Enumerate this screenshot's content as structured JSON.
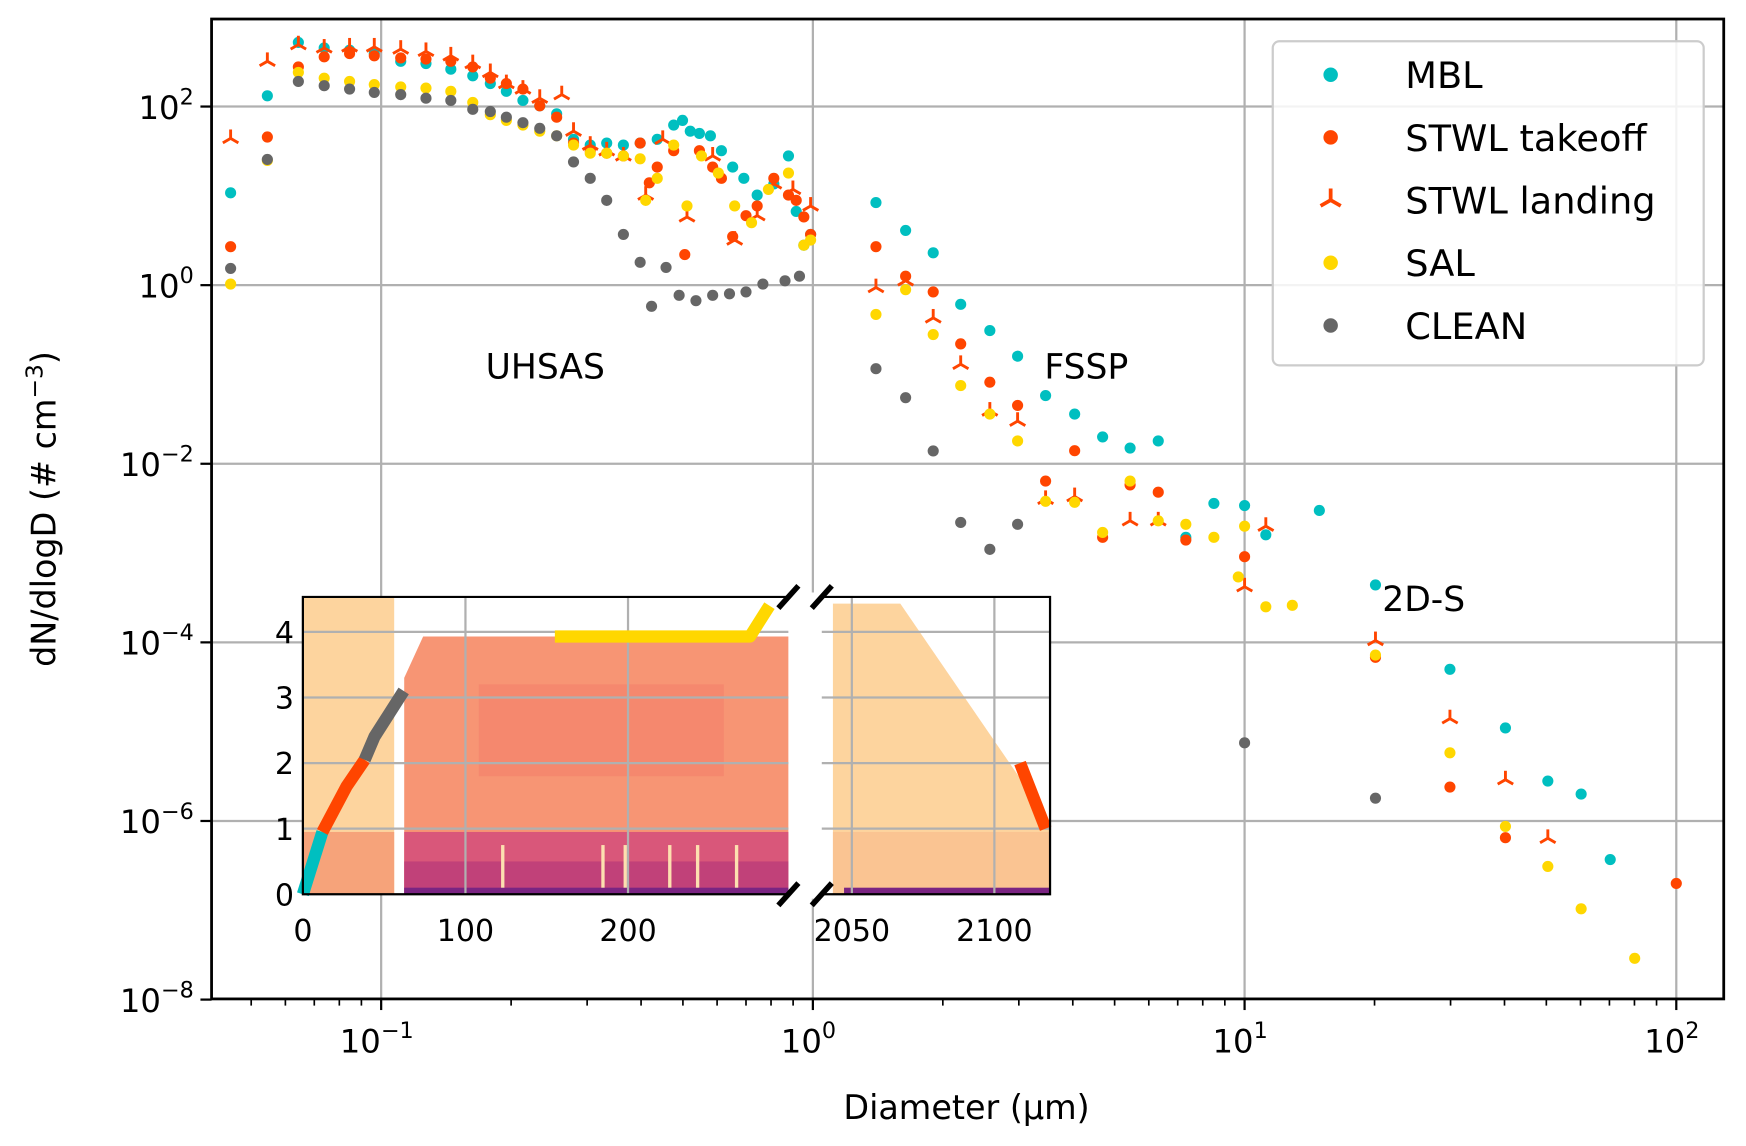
{
  "chart_data": {
    "type": "scatter",
    "xlabel": "Diameter (μm)",
    "ylabel": "dN/dlogD (# cm",
    "ylabel_sup": "−3",
    "ylabel_close": ")",
    "xscale": "log",
    "yscale": "log",
    "xlim": [
      0.0404,
      128
    ],
    "ylim": [
      1e-08,
      930
    ],
    "grid": true,
    "legend_position": "top-right",
    "x_ticks": [
      {
        "base": "10",
        "exp": "−1",
        "value": 0.1
      },
      {
        "base": "10",
        "exp": "0",
        "value": 1
      },
      {
        "base": "10",
        "exp": "1",
        "value": 10
      },
      {
        "base": "10",
        "exp": "2",
        "value": 100
      }
    ],
    "y_ticks": [
      {
        "base": "10",
        "exp": "2",
        "value": 100
      },
      {
        "base": "10",
        "exp": "0",
        "value": 1
      },
      {
        "base": "10",
        "exp": "−2",
        "value": 0.01
      },
      {
        "base": "10",
        "exp": "−4",
        "value": 0.0001
      },
      {
        "base": "10",
        "exp": "−6",
        "value": 1e-06
      },
      {
        "base": "10",
        "exp": "−8",
        "value": 1e-08
      }
    ],
    "annotations": [
      {
        "text": "UHSAS",
        "x": 0.24,
        "y": 0.12
      },
      {
        "text": "FSSP",
        "x": 4.3,
        "y": 0.12
      },
      {
        "text": "2D-S",
        "x": 26,
        "y": 0.0003
      }
    ],
    "series": [
      {
        "name": "MBL",
        "color": "#00bfc0",
        "marker": "circle",
        "points": [
          [
            0.0448,
            10.8
          ],
          [
            0.0545,
            132
          ],
          [
            0.0643,
            523
          ],
          [
            0.0738,
            453
          ],
          [
            0.0845,
            428
          ],
          [
            0.0964,
            392
          ],
          [
            0.111,
            321
          ],
          [
            0.127,
            303
          ],
          [
            0.145,
            262
          ],
          [
            0.163,
            221
          ],
          [
            0.179,
            181
          ],
          [
            0.195,
            148
          ],
          [
            0.213,
            117
          ],
          [
            0.233,
            102
          ],
          [
            0.255,
            83
          ],
          [
            0.279,
            43
          ],
          [
            0.305,
            37
          ],
          [
            0.333,
            39
          ],
          [
            0.364,
            37
          ],
          [
            0.398,
            39
          ],
          [
            0.436,
            43
          ],
          [
            0.476,
            62
          ],
          [
            0.499,
            70
          ],
          [
            0.52,
            53
          ],
          [
            0.546,
            50
          ],
          [
            0.579,
            47
          ],
          [
            0.614,
            32
          ],
          [
            0.652,
            21
          ],
          [
            0.692,
            15.7
          ],
          [
            0.743,
            10.2
          ],
          [
            0.812,
            13.6
          ],
          [
            0.878,
            28
          ],
          [
            0.915,
            6.7
          ],
          [
            0.953,
            2.8
          ],
          [
            0.988,
            3.7
          ],
          [
            1.4,
            8.4
          ],
          [
            1.64,
            4.1
          ],
          [
            1.9,
            2.3
          ],
          [
            2.2,
            0.61
          ],
          [
            2.57,
            0.31
          ],
          [
            2.98,
            0.16
          ],
          [
            3.46,
            0.058
          ],
          [
            4.04,
            0.036
          ],
          [
            4.69,
            0.02
          ],
          [
            5.43,
            0.015
          ],
          [
            6.31,
            0.018
          ],
          [
            7.31,
            0.0015
          ],
          [
            8.49,
            0.0036
          ],
          [
            10.0,
            0.0034
          ],
          [
            11.2,
            0.0016
          ],
          [
            14.9,
            0.003
          ],
          [
            20.1,
            0.00044
          ],
          [
            29.9,
            5e-05
          ],
          [
            40.2,
            1.1e-05
          ],
          [
            50.4,
            2.8e-06
          ],
          [
            60.2,
            2e-06
          ],
          [
            70.3,
            3.7e-07
          ]
        ]
      },
      {
        "name": "STWL takeoff",
        "color": "#ff4500",
        "marker": "circle",
        "points": [
          [
            0.0448,
            2.7
          ],
          [
            0.0545,
            45.6
          ],
          [
            0.0643,
            278
          ],
          [
            0.0738,
            360
          ],
          [
            0.0845,
            392
          ],
          [
            0.0964,
            370
          ],
          [
            0.111,
            350
          ],
          [
            0.127,
            340
          ],
          [
            0.145,
            321
          ],
          [
            0.163,
            278
          ],
          [
            0.179,
            208
          ],
          [
            0.195,
            181
          ],
          [
            0.213,
            157
          ],
          [
            0.233,
            102
          ],
          [
            0.255,
            76
          ],
          [
            0.279,
            39
          ],
          [
            0.305,
            32
          ],
          [
            0.333,
            30
          ],
          [
            0.364,
            28
          ],
          [
            0.398,
            39
          ],
          [
            0.418,
            14
          ],
          [
            0.436,
            21
          ],
          [
            0.476,
            32
          ],
          [
            0.505,
            2.2
          ],
          [
            0.546,
            32
          ],
          [
            0.586,
            21
          ],
          [
            0.614,
            15.7
          ],
          [
            0.652,
            3.5
          ],
          [
            0.7,
            6.0
          ],
          [
            0.743,
            7.7
          ],
          [
            0.812,
            15.7
          ],
          [
            0.878,
            10.2
          ],
          [
            0.915,
            8.9
          ],
          [
            0.953,
            5.8
          ],
          [
            0.988,
            3.7
          ],
          [
            1.4,
            2.7
          ],
          [
            1.64,
            1.26
          ],
          [
            1.9,
            0.84
          ],
          [
            2.2,
            0.22
          ],
          [
            2.57,
            0.082
          ],
          [
            2.98,
            0.045
          ],
          [
            3.46,
            0.0064
          ],
          [
            4.04,
            0.014
          ],
          [
            4.69,
            0.0015
          ],
          [
            5.43,
            0.0058
          ],
          [
            6.31,
            0.0048
          ],
          [
            7.31,
            0.0014
          ],
          [
            10.0,
            0.00091
          ],
          [
            20.1,
            6.8e-05
          ],
          [
            29.9,
            2.4e-06
          ],
          [
            40.2,
            6.5e-07
          ],
          [
            100,
            2e-07
          ]
        ]
      },
      {
        "name": "STWL landing",
        "color": "#ff4500",
        "marker": "tri_down",
        "points": [
          [
            0.0448,
            44
          ],
          [
            0.0545,
            321
          ],
          [
            0.0643,
            493
          ],
          [
            0.0738,
            453
          ],
          [
            0.0845,
            466
          ],
          [
            0.0964,
            466
          ],
          [
            0.111,
            440
          ],
          [
            0.127,
            415
          ],
          [
            0.145,
            370
          ],
          [
            0.163,
            303
          ],
          [
            0.179,
            241
          ],
          [
            0.195,
            181
          ],
          [
            0.213,
            157
          ],
          [
            0.233,
            124
          ],
          [
            0.262,
            136
          ],
          [
            0.279,
            53
          ],
          [
            0.305,
            37
          ],
          [
            0.333,
            32
          ],
          [
            0.364,
            28
          ],
          [
            0.41,
            10.2
          ],
          [
            0.449,
            43
          ],
          [
            0.511,
            5.8
          ],
          [
            0.586,
            28
          ],
          [
            0.659,
            3.2
          ],
          [
            0.743,
            6.0
          ],
          [
            0.812,
            13.6
          ],
          [
            0.899,
            11.8
          ],
          [
            0.988,
            7.7
          ],
          [
            1.4,
            0.94
          ],
          [
            1.64,
            1.12
          ],
          [
            1.9,
            0.43
          ],
          [
            2.2,
            0.13
          ],
          [
            2.57,
            0.039
          ],
          [
            2.98,
            0.03
          ],
          [
            3.46,
            0.004
          ],
          [
            4.04,
            0.0043
          ],
          [
            5.43,
            0.0023
          ],
          [
            6.31,
            0.0023
          ],
          [
            10.0,
            0.00042
          ],
          [
            11.2,
            0.002
          ],
          [
            20.1,
            0.000105
          ],
          [
            29.9,
            1.4e-05
          ],
          [
            40.2,
            2.9e-06
          ],
          [
            50.4,
            6.4e-07
          ]
        ]
      },
      {
        "name": "SAL",
        "color": "#ffd700",
        "marker": "circle",
        "points": [
          [
            0.0448,
            1.03
          ],
          [
            0.0545,
            24.9
          ],
          [
            0.0643,
            241
          ],
          [
            0.0738,
            208
          ],
          [
            0.0845,
            191
          ],
          [
            0.0964,
            176
          ],
          [
            0.111,
            166
          ],
          [
            0.127,
            161
          ],
          [
            0.145,
            148
          ],
          [
            0.163,
            111
          ],
          [
            0.179,
            81
          ],
          [
            0.195,
            70
          ],
          [
            0.213,
            62
          ],
          [
            0.233,
            53
          ],
          [
            0.255,
            47
          ],
          [
            0.279,
            37
          ],
          [
            0.305,
            30
          ],
          [
            0.333,
            30
          ],
          [
            0.364,
            28
          ],
          [
            0.398,
            26
          ],
          [
            0.41,
            8.9
          ],
          [
            0.436,
            15.7
          ],
          [
            0.476,
            37
          ],
          [
            0.511,
            7.7
          ],
          [
            0.552,
            28
          ],
          [
            0.604,
            18
          ],
          [
            0.659,
            7.7
          ],
          [
            0.721,
            5.0
          ],
          [
            0.789,
            11.8
          ],
          [
            0.878,
            18
          ],
          [
            0.953,
            2.8
          ],
          [
            0.988,
            3.2
          ],
          [
            1.4,
            0.47
          ],
          [
            1.64,
            0.89
          ],
          [
            1.9,
            0.28
          ],
          [
            2.2,
            0.075
          ],
          [
            2.57,
            0.036
          ],
          [
            2.98,
            0.018
          ],
          [
            3.46,
            0.0038
          ],
          [
            4.04,
            0.0037
          ],
          [
            4.69,
            0.0017
          ],
          [
            5.43,
            0.0064
          ],
          [
            6.31,
            0.0023
          ],
          [
            7.31,
            0.0021
          ],
          [
            8.49,
            0.0015
          ],
          [
            9.67,
            0.00054
          ],
          [
            10.0,
            0.002
          ],
          [
            11.2,
            0.00025
          ],
          [
            12.9,
            0.00026
          ],
          [
            20.1,
            7.2e-05
          ],
          [
            29.9,
            5.8e-06
          ],
          [
            40.2,
            8.7e-07
          ],
          [
            50.4,
            3.1e-07
          ],
          [
            60.2,
            1.04e-07
          ],
          [
            80.1,
            2.9e-08
          ]
        ]
      },
      {
        "name": "CLEAN",
        "color": "#666666",
        "marker": "circle",
        "points": [
          [
            0.0448,
            1.54
          ],
          [
            0.0545,
            25.6
          ],
          [
            0.0643,
            191
          ],
          [
            0.0738,
            171
          ],
          [
            0.0845,
            157
          ],
          [
            0.0964,
            144
          ],
          [
            0.111,
            136
          ],
          [
            0.127,
            124
          ],
          [
            0.145,
            117
          ],
          [
            0.163,
            93
          ],
          [
            0.179,
            88
          ],
          [
            0.195,
            76
          ],
          [
            0.213,
            66
          ],
          [
            0.233,
            57
          ],
          [
            0.255,
            47
          ],
          [
            0.279,
            24
          ],
          [
            0.305,
            15.7
          ],
          [
            0.333,
            8.9
          ],
          [
            0.364,
            3.7
          ],
          [
            0.398,
            1.8
          ],
          [
            0.423,
            0.58
          ],
          [
            0.457,
            1.58
          ],
          [
            0.49,
            0.77
          ],
          [
            0.536,
            0.67
          ],
          [
            0.586,
            0.77
          ],
          [
            0.641,
            0.8
          ],
          [
            0.7,
            0.84
          ],
          [
            0.766,
            1.03
          ],
          [
            0.862,
            1.12
          ],
          [
            0.931,
            1.26
          ],
          [
            1.4,
            0.116
          ],
          [
            1.64,
            0.055
          ],
          [
            1.9,
            0.0139
          ],
          [
            2.2,
            0.0022
          ],
          [
            2.57,
            0.0011
          ],
          [
            2.98,
            0.0021
          ],
          [
            10.0,
            7.5e-06
          ],
          [
            20.1,
            1.8e-06
          ]
        ]
      }
    ],
    "inset": {
      "type": "heatmap",
      "x_ticks_left": [
        "0",
        "100",
        "200"
      ],
      "x_tick_values_left": [
        0,
        100,
        200
      ],
      "x_ticks_right": [
        "2050",
        "2100"
      ],
      "x_tick_values_right": [
        2050,
        2100
      ],
      "y_ticks": [
        "0",
        "1",
        "2",
        "3",
        "4"
      ],
      "xlim_left": [
        0,
        299
      ],
      "xlim_right": [
        2039,
        2119
      ],
      "ylim": [
        0,
        4.55
      ],
      "track": [
        {
          "series": "MBL",
          "color": "#00bfc0",
          "points": [
            [
              0,
              0
            ],
            [
              12,
              0.95
            ]
          ]
        },
        {
          "series": "STWL takeoff",
          "color": "#ff4500",
          "points": [
            [
              12,
              0.95
            ],
            [
              27,
              1.65
            ],
            [
              38,
              2.05
            ]
          ]
        },
        {
          "series": "CLEAN",
          "color": "#666666",
          "points": [
            [
              38,
              2.05
            ],
            [
              44,
              2.4
            ],
            [
              62,
              3.1
            ]
          ]
        },
        {
          "series": "SAL",
          "color": "#ffd700",
          "points": [
            [
              155,
              3.93
            ],
            [
              275,
              3.93
            ],
            [
              287,
              4.4
            ]
          ]
        },
        {
          "series": "STWL landing",
          "color": "#ff4500",
          "points": [
            [
              2109,
              2.0
            ],
            [
              2118,
              1.0
            ]
          ]
        }
      ]
    }
  }
}
